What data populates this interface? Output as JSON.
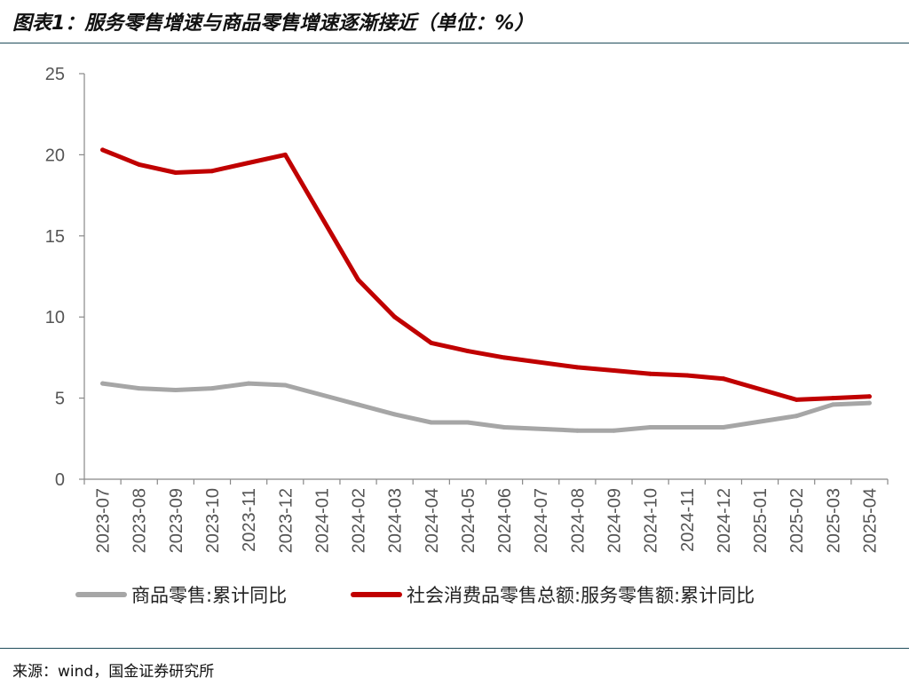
{
  "header": {
    "title": "图表1：服务零售增速与商品零售增速逐渐接近（单位：%）"
  },
  "footer": {
    "source": "来源：wind，国金证券研究所"
  },
  "chart_data": {
    "type": "line",
    "title": "图表1：服务零售增速与商品零售增速逐渐接近（单位：%）",
    "xlabel": "",
    "ylabel": "",
    "ylim": [
      0,
      25
    ],
    "yticks": [
      "0",
      "5",
      "10",
      "15",
      "20",
      "25"
    ],
    "grid": false,
    "legend_position": "bottom",
    "categories": [
      "2023-07",
      "2023-08",
      "2023-09",
      "2023-10",
      "2023-11",
      "2023-12",
      "2024-01",
      "2024-02",
      "2024-03",
      "2024-04",
      "2024-05",
      "2024-06",
      "2024-07",
      "2024-08",
      "2024-09",
      "2024-10",
      "2024-11",
      "2024-12",
      "2025-01",
      "2025-02",
      "2025-03",
      "2025-04"
    ],
    "series": [
      {
        "name": "商品零售:累计同比",
        "color": "#a6a6a6",
        "values": [
          5.9,
          5.6,
          5.5,
          5.6,
          5.9,
          5.8,
          null,
          4.6,
          4.0,
          3.5,
          3.5,
          3.2,
          null,
          3.0,
          3.0,
          3.2,
          3.2,
          3.2,
          null,
          3.9,
          4.6,
          4.7
        ]
      },
      {
        "name": "社会消费品零售总额:服务零售额:累计同比",
        "color": "#c00000",
        "values": [
          20.3,
          19.4,
          18.9,
          19.0,
          19.5,
          20.0,
          null,
          12.3,
          10.0,
          8.4,
          7.9,
          7.5,
          null,
          6.9,
          6.7,
          6.5,
          6.4,
          6.2,
          null,
          4.9,
          5.0,
          5.1
        ]
      }
    ]
  }
}
